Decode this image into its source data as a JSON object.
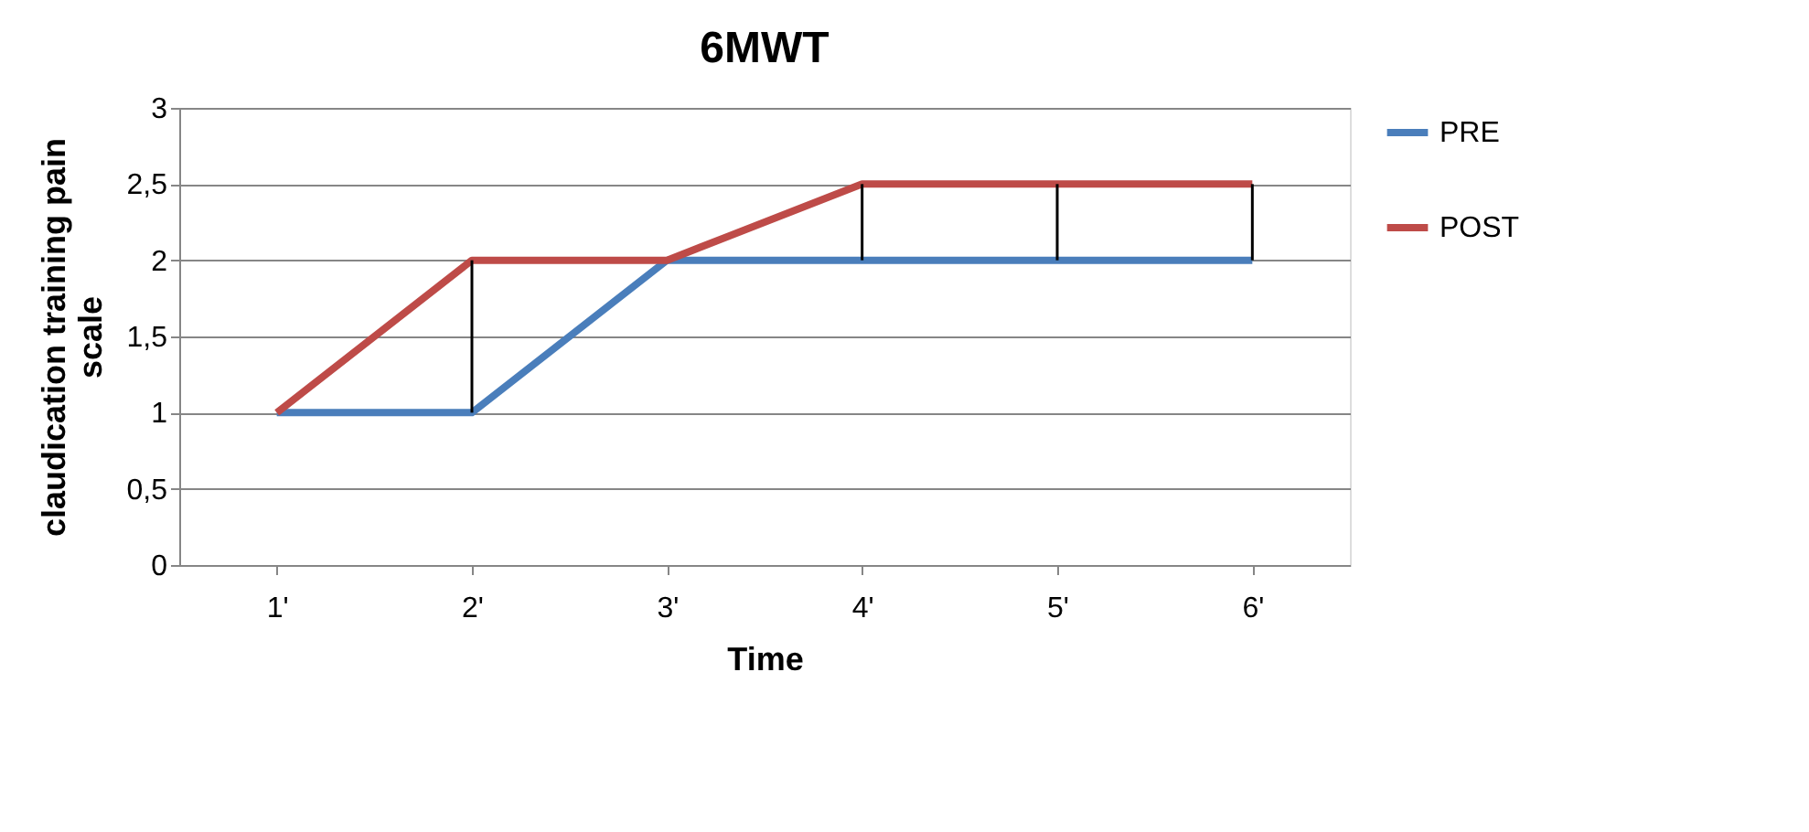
{
  "chart_data": {
    "type": "line",
    "title": "6MWT",
    "xlabel": "Time",
    "ylabel": "claudication training pain scale",
    "categories": [
      "1'",
      "2'",
      "3'",
      "4'",
      "5'",
      "6'"
    ],
    "series": [
      {
        "name": "PRE",
        "color": "#4a7ebb",
        "values": [
          1,
          1,
          2,
          2,
          2,
          2
        ]
      },
      {
        "name": "POST",
        "color": "#be4b48",
        "values": [
          1,
          2,
          2,
          2.5,
          2.5,
          2.5
        ],
        "errors": [
          null,
          [
            1,
            2
          ],
          null,
          [
            2,
            2.5
          ],
          [
            2,
            2.5
          ],
          [
            2,
            2.5
          ]
        ]
      }
    ],
    "ylim": [
      0,
      3
    ],
    "yticks": [
      0,
      {
        "value": 0.5,
        "label": "0,5"
      },
      1,
      {
        "value": 1.5,
        "label": "1,5"
      },
      2,
      {
        "value": 2.5,
        "label": "2,5"
      },
      3
    ],
    "grid": "y",
    "legend": "right",
    "marker": "none",
    "line_style": "solid"
  }
}
